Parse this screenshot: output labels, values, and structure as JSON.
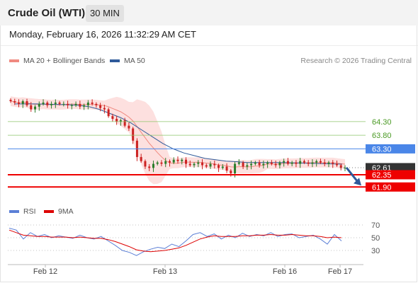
{
  "header": {
    "title": "Crude Oil (WTI)",
    "interval": "30 MIN",
    "datetime": "Monday, February 16, 2026 11:32:29 AM CET"
  },
  "legend": {
    "ma20_label": "MA 20 + Bollinger Bands",
    "ma50_label": "MA 50",
    "credit": "Research © 2026 Trading Central",
    "rsi_label": "RSI",
    "rsi9ma_label": "9MA"
  },
  "colors": {
    "ma20": "#f08a80",
    "ma50": "#2f5a9a",
    "band_fill": "#fde0df",
    "resistance": "#8ec66a",
    "pivot": "#4a86e8",
    "support": "#ee0000",
    "last_price": "#333333",
    "rsi": "#5b7fd6",
    "rsi_ma": "#dd0000",
    "arrow": "#2f5a9a"
  },
  "chart_data": [
    {
      "type": "candlestick",
      "title": "Crude Oil (WTI)",
      "interval": "30 MIN",
      "y_axis_visible": false,
      "x_ticks": [
        "Feb 12",
        "Feb 13",
        "Feb 16",
        "Feb 17"
      ],
      "ylim": [
        61.7,
        65.7
      ],
      "levels": [
        {
          "value": 64.3,
          "label": "64.30",
          "kind": "resistance"
        },
        {
          "value": 63.8,
          "label": "63.80",
          "kind": "resistance"
        },
        {
          "value": 63.3,
          "label": "63.30",
          "kind": "pivot"
        },
        {
          "value": 62.61,
          "label": "62.61",
          "kind": "last"
        },
        {
          "value": 62.35,
          "label": "62.35",
          "kind": "support"
        },
        {
          "value": 61.9,
          "label": "61.90",
          "kind": "support"
        }
      ],
      "close_series": [
        65.05,
        65.0,
        64.95,
        65.05,
        64.9,
        64.75,
        64.85,
        64.95,
        65.0,
        64.9,
        64.95,
        65.0,
        64.95,
        64.95,
        64.9,
        64.9,
        64.95,
        64.85,
        64.9,
        65.0,
        64.95,
        64.9,
        64.8,
        64.75,
        64.5,
        64.4,
        64.3,
        64.35,
        64.15,
        64.05,
        63.6,
        63.0,
        62.85,
        62.65,
        62.6,
        62.75,
        62.8,
        62.75,
        62.85,
        62.8,
        62.9,
        62.85,
        62.9,
        62.75,
        62.7,
        62.75,
        62.8,
        62.7,
        62.65,
        62.75,
        62.7,
        62.6,
        62.65,
        62.5,
        62.4,
        62.75,
        62.8,
        62.65,
        62.7,
        62.75,
        62.8,
        62.7,
        62.75,
        62.8,
        62.75,
        62.7,
        62.8,
        62.85,
        62.75,
        62.8,
        62.75,
        62.85,
        62.8,
        62.75,
        62.8,
        62.85,
        62.8,
        62.75,
        62.8,
        62.75,
        62.7,
        62.6,
        62.61
      ],
      "series": [
        {
          "name": "MA 20 + Bollinger Bands"
        },
        {
          "name": "MA 50"
        }
      ],
      "ma50": [
        64.95,
        64.95,
        64.95,
        64.94,
        64.93,
        64.92,
        64.9,
        64.85,
        64.75,
        64.6,
        64.45,
        64.25,
        64.0,
        63.75,
        63.5,
        63.3,
        63.15,
        63.05,
        62.95,
        62.9,
        62.85,
        62.83,
        62.8,
        62.8,
        62.8,
        62.8,
        62.79,
        62.78,
        62.77,
        62.76,
        62.75,
        62.74
      ],
      "forecast": {
        "from": 62.61,
        "to": 61.9
      }
    },
    {
      "type": "line",
      "title": "RSI",
      "series": [
        {
          "name": "RSI",
          "values": [
            65,
            62,
            48,
            58,
            52,
            55,
            50,
            53,
            51,
            49,
            54,
            50,
            48,
            52,
            45,
            38,
            30,
            27,
            22,
            28,
            32,
            35,
            33,
            40,
            36,
            45,
            55,
            58,
            52,
            56,
            48,
            54,
            50,
            57,
            52,
            55,
            53,
            58,
            52,
            55,
            56,
            50,
            52,
            54,
            48,
            40,
            55,
            45
          ]
        },
        {
          "name": "9MA",
          "values": [
            62,
            58,
            54,
            53,
            52,
            52,
            51,
            51,
            51,
            50,
            51,
            50,
            49,
            49,
            47,
            44,
            40,
            36,
            31,
            29,
            28,
            29,
            30,
            32,
            34,
            38,
            43,
            48,
            51,
            53,
            52,
            52,
            52,
            53,
            53,
            54,
            54,
            55,
            54,
            54,
            55,
            54,
            53,
            53,
            52,
            50,
            51,
            50
          ]
        }
      ],
      "levels": [
        70,
        50,
        30
      ],
      "ylim": [
        10,
        90
      ]
    }
  ]
}
